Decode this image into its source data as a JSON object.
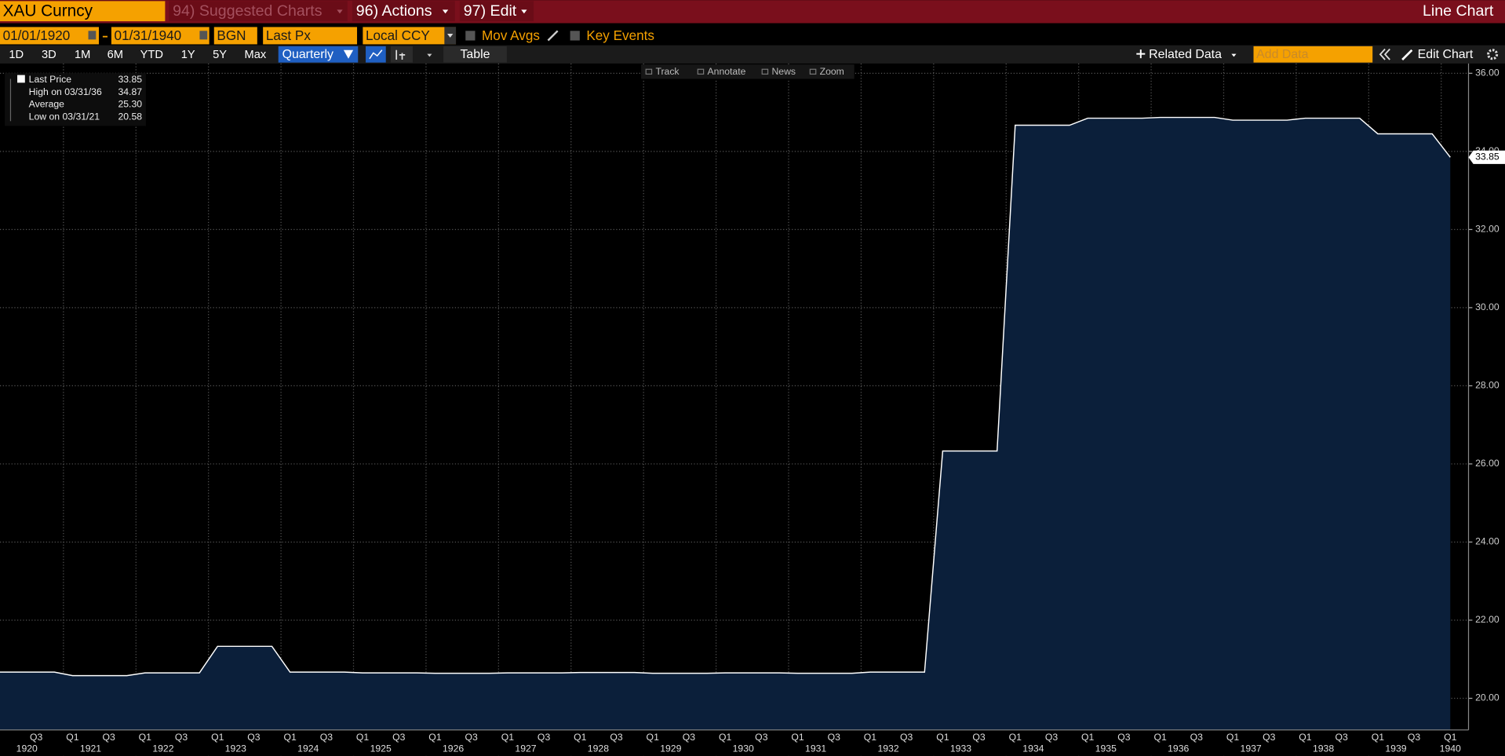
{
  "header": {
    "ticker": "XAU Curncy",
    "suggested": "94) Suggested Charts",
    "actions": "96) Actions",
    "edit": "97) Edit",
    "chart_type_label": "Line Chart"
  },
  "controls": {
    "start_date": "01/01/1920",
    "end_date": "01/31/1940",
    "bgn": "BGN",
    "field": "Last Px",
    "currency": "Local CCY",
    "mov_avgs": "Mov Avgs",
    "key_events": "Key Events"
  },
  "periods": [
    "1D",
    "3D",
    "1M",
    "6M",
    "YTD",
    "1Y",
    "5Y",
    "Max"
  ],
  "frequency": "Quarterly",
  "table": "Table",
  "related_data": "Related Data",
  "add_data": "Add Data",
  "edit_chart": "Edit Chart",
  "chart_tools": [
    "Track",
    "Annotate",
    "News",
    "Zoom"
  ],
  "legend": [
    {
      "label": "Last Price",
      "value": "33.85"
    },
    {
      "label": "High on 03/31/36",
      "value": "34.87"
    },
    {
      "label": "Average",
      "value": "25.30"
    },
    {
      "label": "Low on 03/31/21",
      "value": "20.58"
    }
  ],
  "chart_data": {
    "type": "line",
    "categories": [
      null,
      null,
      "Q3",
      null,
      "Q1",
      null,
      "Q3",
      null,
      "Q1",
      null,
      "Q3",
      null,
      "Q1",
      null,
      "Q3",
      null,
      "Q1",
      null,
      "Q3",
      null,
      "Q1",
      null,
      "Q3",
      null,
      "Q1",
      null,
      "Q3",
      null,
      "Q1",
      null,
      "Q3",
      null,
      "Q1",
      null,
      "Q3",
      null,
      "Q1",
      null,
      "Q3",
      null,
      "Q1",
      null,
      "Q3",
      null,
      "Q1",
      null,
      "Q3",
      null,
      "Q1",
      null,
      "Q3",
      null,
      "Q1",
      null,
      "Q3",
      null,
      "Q1",
      null,
      "Q3",
      null,
      "Q1",
      null,
      "Q3",
      null,
      "Q1",
      null,
      "Q3",
      null,
      "Q1",
      null,
      "Q3",
      null,
      "Q1",
      null,
      "Q3",
      null,
      "Q1",
      null,
      "Q3",
      null,
      "Q1"
    ],
    "years": [
      "1920",
      "1921",
      "1922",
      "1923",
      "1924",
      "1925",
      "1926",
      "1927",
      "1928",
      "1929",
      "1930",
      "1931",
      "1932",
      "1933",
      "1934",
      "1935",
      "1936",
      "1937",
      "1938",
      "1939",
      "1940"
    ],
    "series": [
      {
        "name": "Last Price",
        "color": "#ffffff",
        "fill": "#0b1f3a",
        "values": [
          20.67,
          20.67,
          20.67,
          20.67,
          20.58,
          20.58,
          20.58,
          20.58,
          20.65,
          20.65,
          20.65,
          20.65,
          21.33,
          21.33,
          21.33,
          21.33,
          20.67,
          20.67,
          20.67,
          20.67,
          20.65,
          20.65,
          20.65,
          20.65,
          20.64,
          20.64,
          20.64,
          20.64,
          20.65,
          20.65,
          20.65,
          20.65,
          20.66,
          20.66,
          20.66,
          20.66,
          20.64,
          20.64,
          20.64,
          20.64,
          20.65,
          20.65,
          20.65,
          20.65,
          20.64,
          20.64,
          20.64,
          20.64,
          20.67,
          20.67,
          20.67,
          20.67,
          26.33,
          26.33,
          26.33,
          26.33,
          34.67,
          34.67,
          34.67,
          34.67,
          34.85,
          34.85,
          34.85,
          34.85,
          34.87,
          34.87,
          34.87,
          34.87,
          34.8,
          34.8,
          34.8,
          34.8,
          34.85,
          34.85,
          34.85,
          34.85,
          34.45,
          34.45,
          34.45,
          34.45,
          33.85
        ]
      }
    ],
    "ylim": [
      19.19,
      36.25
    ],
    "yticks": [
      {
        "value": 20,
        "label": "20.00"
      },
      {
        "value": 22,
        "label": "22.00"
      },
      {
        "value": 24,
        "label": "24.00"
      },
      {
        "value": 26,
        "label": "26.00"
      },
      {
        "value": 28,
        "label": "28.00"
      },
      {
        "value": 30,
        "label": "30.00"
      },
      {
        "value": 32,
        "label": "32.00"
      },
      {
        "value": 34,
        "label": "34.00"
      },
      {
        "value": 36,
        "label": "36.00"
      }
    ],
    "grid": true,
    "axis_side": "right"
  }
}
